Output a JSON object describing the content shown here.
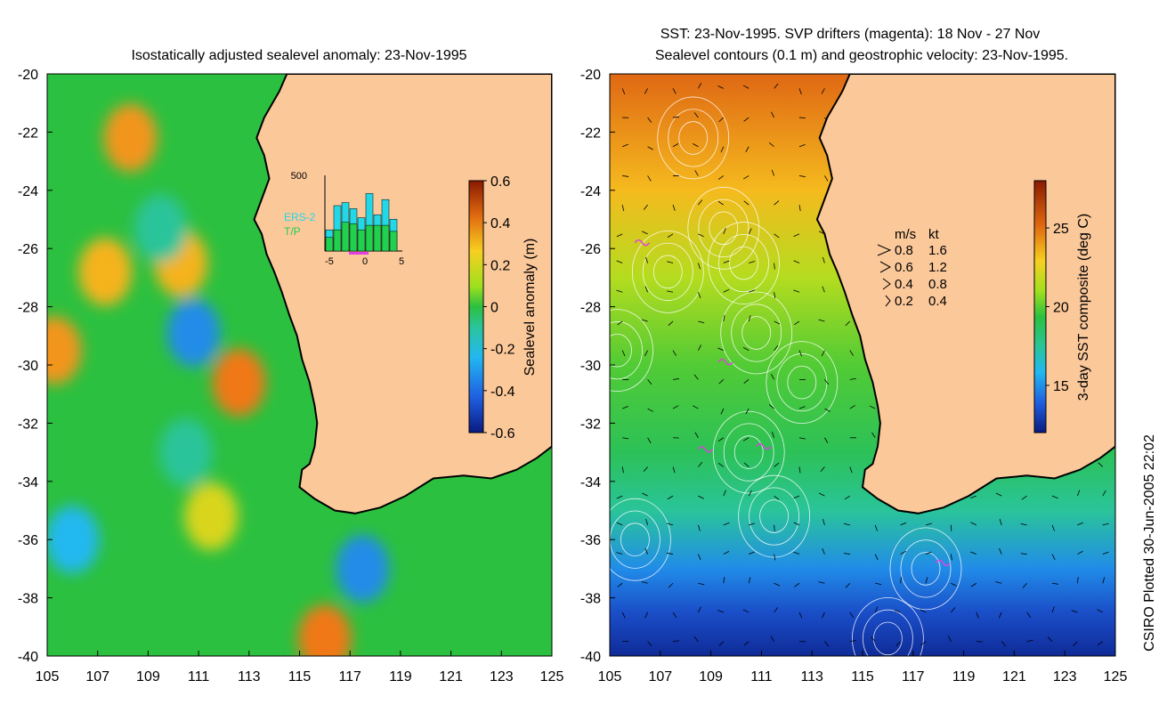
{
  "credit": "CSIRO Plotted 30-Jun-2005 22:02",
  "chart_data": [
    {
      "type": "heatmap",
      "panel": "left",
      "title": "Isostatically adjusted sealevel anomaly: 23-Nov-1995",
      "xlim": [
        105,
        125
      ],
      "ylim": [
        -40,
        -20
      ],
      "xticks": [
        105,
        107,
        109,
        111,
        113,
        115,
        117,
        119,
        121,
        123,
        125
      ],
      "yticks": [
        -20,
        -22,
        -24,
        -26,
        -28,
        -30,
        -32,
        -34,
        -36,
        -38,
        -40
      ],
      "colorbar": {
        "label": "Sealevel anomaly (m)",
        "range": [
          -0.6,
          0.6
        ],
        "ticks": [
          0.6,
          0.4,
          0.2,
          0,
          -0.2,
          -0.4,
          -0.6
        ],
        "tick_labels": [
          "0.6",
          "0.4",
          "0.2",
          "0",
          "-0.2",
          "-0.4",
          "-0.6"
        ]
      },
      "anomalies": [
        {
          "lon": 108.3,
          "lat": -22.2,
          "value": 0.35
        },
        {
          "lon": 107.3,
          "lat": -26.8,
          "value": 0.3
        },
        {
          "lon": 110.3,
          "lat": -26.5,
          "value": 0.3
        },
        {
          "lon": 105.3,
          "lat": -29.5,
          "value": 0.35
        },
        {
          "lon": 112.6,
          "lat": -30.6,
          "value": 0.4
        },
        {
          "lon": 110.8,
          "lat": -28.9,
          "value": -0.3
        },
        {
          "lon": 106.0,
          "lat": -36.0,
          "value": -0.2
        },
        {
          "lon": 117.5,
          "lat": -37.0,
          "value": -0.3
        },
        {
          "lon": 116.0,
          "lat": -39.4,
          "value": 0.4
        },
        {
          "lon": 109.5,
          "lat": -25.3,
          "value": -0.1
        },
        {
          "lon": 110.5,
          "lat": -33.0,
          "value": -0.1
        },
        {
          "lon": 111.5,
          "lat": -35.2,
          "value": 0.2
        }
      ],
      "inset_histogram": {
        "ymax_label": "500",
        "xtick_labels": [
          "-5",
          "0",
          "5"
        ],
        "legend": [
          "ERS-2",
          "T/P"
        ],
        "ers2_values": [
          140,
          300,
          320,
          280,
          220,
          380,
          240,
          340,
          210
        ],
        "tp_values": [
          90,
          140,
          190,
          180,
          140,
          170,
          170,
          170,
          130
        ]
      }
    },
    {
      "type": "heatmap",
      "panel": "right",
      "title_line1": "SST: 23-Nov-1995. SVP drifters (magenta): 18 Nov - 27 Nov",
      "title_line2": "Sealevel contours (0.1 m) and geostrophic velocity: 23-Nov-1995.",
      "xlim": [
        105,
        125
      ],
      "ylim": [
        -40,
        -20
      ],
      "xticks": [
        105,
        107,
        109,
        111,
        113,
        115,
        117,
        119,
        121,
        123,
        125
      ],
      "yticks": [
        -20,
        -22,
        -24,
        -26,
        -28,
        -30,
        -32,
        -34,
        -36,
        -38,
        -40
      ],
      "colorbar": {
        "label": "3-day SST composite (deg C)",
        "range": [
          12,
          28
        ],
        "ticks": [
          25,
          20,
          15
        ],
        "tick_labels": [
          "25",
          "20",
          "15"
        ]
      },
      "sst_by_latitude": [
        {
          "lat": -20,
          "sst": 25.5
        },
        {
          "lat": -24,
          "sst": 23.5
        },
        {
          "lat": -27,
          "sst": 21.5
        },
        {
          "lat": -30,
          "sst": 20
        },
        {
          "lat": -33,
          "sst": 19
        },
        {
          "lat": -35,
          "sst": 17.5
        },
        {
          "lat": -37,
          "sst": 15
        },
        {
          "lat": -38.5,
          "sst": 13.5
        },
        {
          "lat": -40,
          "sst": 12.5
        }
      ],
      "velocity_legend": {
        "header_ms": "m/s",
        "header_kt": "kt",
        "rows": [
          {
            "ms": "0.8",
            "kt": "1.6"
          },
          {
            "ms": "0.6",
            "kt": "1.2"
          },
          {
            "ms": "0.4",
            "kt": "0.8"
          },
          {
            "ms": "0.2",
            "kt": "0.4"
          }
        ]
      }
    }
  ],
  "colors": {
    "land": "#fbc89a",
    "ocean_mid": "#22b54a",
    "drifter": "#e040e0",
    "coast": "#000000"
  }
}
